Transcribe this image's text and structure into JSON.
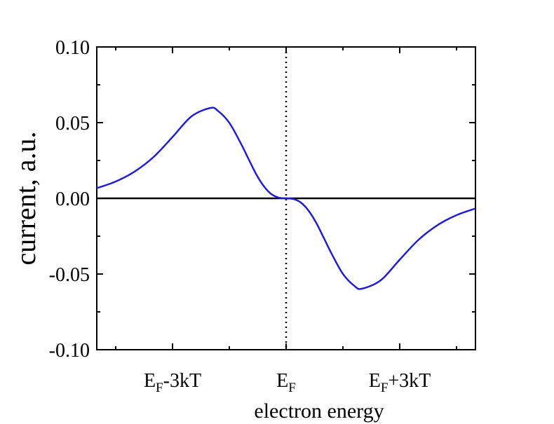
{
  "chart_data": {
    "type": "line",
    "xlabel": "electron energy",
    "ylabel": "current, a.u.",
    "xlim": [
      -5,
      5
    ],
    "ylim": [
      -0.1,
      0.1
    ],
    "y_ticks": [
      0.1,
      0.05,
      0.0,
      -0.05,
      -0.1
    ],
    "y_tick_labels": [
      "0.10",
      "0.05",
      "0.00",
      "-0.05",
      "-0.10"
    ],
    "x_ticks": [
      {
        "x": -3,
        "main": "E",
        "sub": "F",
        "suffix": "-3kT"
      },
      {
        "x": 0,
        "main": "E",
        "sub": "F",
        "suffix": ""
      },
      {
        "x": 3,
        "main": "E",
        "sub": "F",
        "suffix": "+3kT"
      }
    ],
    "x_minor_ticks": [
      -4.5,
      -1.5,
      1.5,
      4.5
    ],
    "reference_lines": [
      {
        "orientation": "horizontal",
        "y": 0,
        "style": "solid",
        "color": "#000000"
      },
      {
        "orientation": "vertical",
        "x": 0,
        "style": "dotted",
        "color": "#000000"
      }
    ],
    "series": [
      {
        "color": "#1f1fd0",
        "x": [
          -5,
          -4.5,
          -4,
          -3.5,
          -3,
          -2.5,
          -2,
          -1.8,
          -1.5,
          -1.2,
          -1,
          -0.8,
          -0.6,
          -0.4,
          -0.2,
          0,
          0.2,
          0.4,
          0.6,
          0.8,
          1,
          1.2,
          1.5,
          1.8,
          2,
          2.5,
          3,
          3.5,
          4,
          4.5,
          5
        ],
        "y": [
          0.0067,
          0.0111,
          0.0177,
          0.0273,
          0.0405,
          0.0541,
          0.0597,
          0.0578,
          0.0499,
          0.0365,
          0.0264,
          0.0164,
          0.0084,
          0.003,
          0.0005,
          0,
          -0.0005,
          -0.003,
          -0.0084,
          -0.0164,
          -0.0264,
          -0.0365,
          -0.0499,
          -0.0578,
          -0.0597,
          -0.0541,
          -0.0405,
          -0.0273,
          -0.0177,
          -0.0111,
          -0.0067
        ]
      }
    ],
    "grid": false,
    "legend": "none"
  }
}
